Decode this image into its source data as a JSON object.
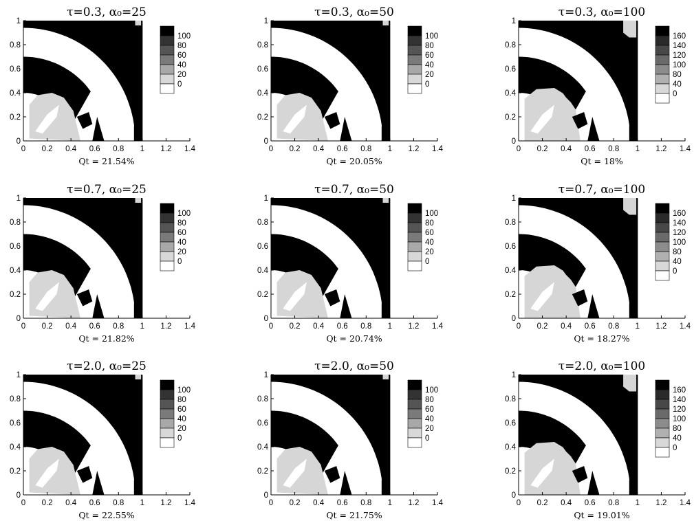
{
  "chart_data": [
    {
      "type": "heatmap",
      "title": "τ=0.3, α₀=25",
      "caption": "Qt = 21.54%",
      "xlim": [
        0,
        1.4
      ],
      "ylim": [
        0,
        1
      ],
      "xticks": [
        "0",
        "0.2",
        "0.4",
        "0.6",
        "0.8",
        "1",
        "1.2",
        "1.4"
      ],
      "yticks": [
        "0",
        "0.2",
        "0.4",
        "0.6",
        "0.8",
        "1"
      ],
      "legend_levels": [
        "100",
        "80",
        "60",
        "40",
        "20",
        "0"
      ],
      "legend_colors": [
        "#000000",
        "#333333",
        "#555555",
        "#7a7a7a",
        "#a8a8a8",
        "#d8d8d8",
        "#ffffff"
      ]
    },
    {
      "type": "heatmap",
      "title": "τ=0.3, α₀=50",
      "caption": "Qt = 20.05%",
      "xlim": [
        0,
        1.4
      ],
      "ylim": [
        0,
        1
      ],
      "xticks": [
        "0",
        "0.2",
        "0.4",
        "0.6",
        "0.8",
        "1",
        "1.2",
        "1.4"
      ],
      "yticks": [
        "0",
        "0.2",
        "0.4",
        "0.6",
        "0.8",
        "1"
      ],
      "legend_levels": [
        "100",
        "80",
        "60",
        "40",
        "20",
        "0"
      ],
      "legend_colors": [
        "#000000",
        "#333333",
        "#555555",
        "#7a7a7a",
        "#a8a8a8",
        "#d8d8d8",
        "#ffffff"
      ]
    },
    {
      "type": "heatmap",
      "title": "τ=0.3, α₀=100",
      "caption": "Qt = 18%",
      "xlim": [
        0,
        1.4
      ],
      "ylim": [
        0,
        1
      ],
      "xticks": [
        "0",
        "0.2",
        "0.4",
        "0.6",
        "0.8",
        "1",
        "1.2",
        "1.4"
      ],
      "yticks": [
        "0",
        "0.2",
        "0.4",
        "0.6",
        "0.8",
        "1"
      ],
      "legend_levels": [
        "160",
        "140",
        "120",
        "100",
        "80",
        "40",
        "0"
      ],
      "legend_colors": [
        "#000000",
        "#2a2a2a",
        "#484848",
        "#6a6a6a",
        "#8c8c8c",
        "#b0b0b0",
        "#d8d8d8",
        "#ffffff"
      ]
    },
    {
      "type": "heatmap",
      "title": "τ=0.7, α₀=25",
      "caption": "Qt = 21.82%",
      "xlim": [
        0,
        1.4
      ],
      "ylim": [
        0,
        1
      ],
      "xticks": [
        "0",
        "0.2",
        "0.4",
        "0.6",
        "0.8",
        "1",
        "1.2",
        "1.4"
      ],
      "yticks": [
        "0",
        "0.2",
        "0.4",
        "0.6",
        "0.8",
        "1"
      ],
      "legend_levels": [
        "100",
        "80",
        "60",
        "40",
        "20",
        "0"
      ],
      "legend_colors": [
        "#000000",
        "#333333",
        "#555555",
        "#7a7a7a",
        "#a8a8a8",
        "#d8d8d8",
        "#ffffff"
      ]
    },
    {
      "type": "heatmap",
      "title": "τ=0.7, α₀=50",
      "caption": "Qt = 20.74%",
      "xlim": [
        0,
        1.4
      ],
      "ylim": [
        0,
        1
      ],
      "xticks": [
        "0",
        "0.2",
        "0.4",
        "0.6",
        "0.8",
        "1",
        "1.2",
        "1.4"
      ],
      "yticks": [
        "0",
        "0.2",
        "0.4",
        "0.6",
        "0.8",
        "1"
      ],
      "legend_levels": [
        "100",
        "80",
        "60",
        "40",
        "20",
        "0"
      ],
      "legend_colors": [
        "#000000",
        "#333333",
        "#555555",
        "#7a7a7a",
        "#a8a8a8",
        "#d8d8d8",
        "#ffffff"
      ]
    },
    {
      "type": "heatmap",
      "title": "τ=0.7, α₀=100",
      "caption": "Qt = 18.27%",
      "xlim": [
        0,
        1.4
      ],
      "ylim": [
        0,
        1
      ],
      "xticks": [
        "0",
        "0.2",
        "0.4",
        "0.6",
        "0.8",
        "1",
        "1.2",
        "1.4"
      ],
      "yticks": [
        "0",
        "0.2",
        "0.4",
        "0.6",
        "0.8",
        "1"
      ],
      "legend_levels": [
        "160",
        "140",
        "120",
        "100",
        "80",
        "40",
        "0"
      ],
      "legend_colors": [
        "#000000",
        "#2a2a2a",
        "#484848",
        "#6a6a6a",
        "#8c8c8c",
        "#b0b0b0",
        "#d8d8d8",
        "#ffffff"
      ]
    },
    {
      "type": "heatmap",
      "title": "τ=2.0, α₀=25",
      "caption": "Qt = 22.55%",
      "xlim": [
        0,
        1.4
      ],
      "ylim": [
        0,
        1
      ],
      "xticks": [
        "0",
        "0.2",
        "0.4",
        "0.6",
        "0.8",
        "1",
        "1.2",
        "1.4"
      ],
      "yticks": [
        "0",
        "0.2",
        "0.4",
        "0.6",
        "0.8",
        "1"
      ],
      "legend_levels": [
        "100",
        "80",
        "60",
        "40",
        "20",
        "0"
      ],
      "legend_colors": [
        "#000000",
        "#333333",
        "#555555",
        "#7a7a7a",
        "#a8a8a8",
        "#d8d8d8",
        "#ffffff"
      ]
    },
    {
      "type": "heatmap",
      "title": "τ=2.0, α₀=50",
      "caption": "Qt = 21.75%",
      "xlim": [
        0,
        1.4
      ],
      "ylim": [
        0,
        1
      ],
      "xticks": [
        "0",
        "0.2",
        "0.4",
        "0.6",
        "0.8",
        "1",
        "1.2",
        "1.4"
      ],
      "yticks": [
        "0",
        "0.2",
        "0.4",
        "0.6",
        "0.8",
        "1"
      ],
      "legend_levels": [
        "100",
        "80",
        "60",
        "40",
        "20",
        "0"
      ],
      "legend_colors": [
        "#000000",
        "#333333",
        "#555555",
        "#7a7a7a",
        "#a8a8a8",
        "#d8d8d8",
        "#ffffff"
      ]
    },
    {
      "type": "heatmap",
      "title": "τ=2.0, α₀=100",
      "caption": "Qt = 19.01%",
      "xlim": [
        0,
        1.4
      ],
      "ylim": [
        0,
        1
      ],
      "xticks": [
        "0",
        "0.2",
        "0.4",
        "0.6",
        "0.8",
        "1",
        "1.2",
        "1.4"
      ],
      "yticks": [
        "0",
        "0.2",
        "0.4",
        "0.6",
        "0.8",
        "1"
      ],
      "legend_levels": [
        "160",
        "140",
        "120",
        "100",
        "80",
        "40",
        "0"
      ],
      "legend_colors": [
        "#000000",
        "#2a2a2a",
        "#484848",
        "#6a6a6a",
        "#8c8c8c",
        "#b0b0b0",
        "#d8d8d8",
        "#ffffff"
      ]
    }
  ]
}
